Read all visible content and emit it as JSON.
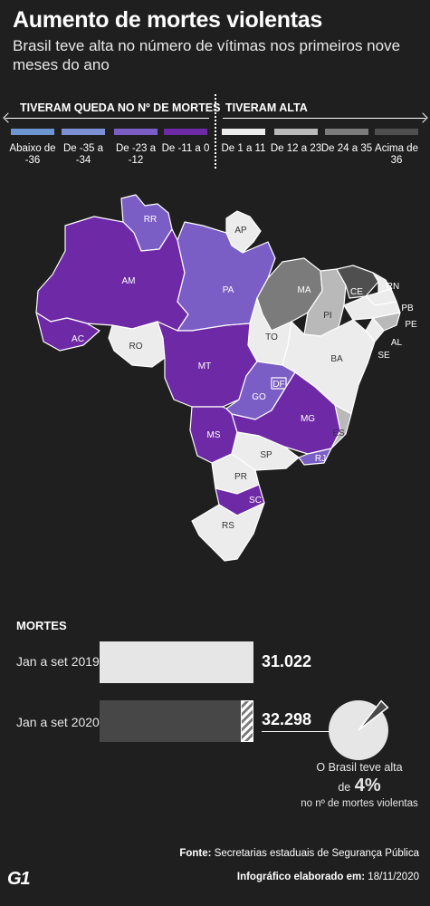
{
  "header": {
    "title": "Aumento de mortes violentas",
    "subtitle": "Brasil teve alta no número de vítimas nos primeiros nove meses do ano"
  },
  "legend": {
    "left_heading": "TIVERAM QUEDA NO Nº DE MORTES",
    "right_heading": "TIVERAM ALTA",
    "items": [
      {
        "label": "Abaixo de -36",
        "color": "#6c95d2"
      },
      {
        "label": "De -35 a -34",
        "color": "#7d90d6"
      },
      {
        "label": "De -23 a -12",
        "color": "#7b5ec5"
      },
      {
        "label": "De -11 a 0",
        "color": "#6e2aa6"
      },
      {
        "label": "De 1 a 11",
        "color": "#ececec"
      },
      {
        "label": "De 12 a 23",
        "color": "#b9b9b9"
      },
      {
        "label": "De 24 a 35",
        "color": "#7b7b7b"
      },
      {
        "label": "Acima de 36",
        "color": "#4f4f4f"
      }
    ]
  },
  "map": {
    "states": [
      {
        "abbr": "RR",
        "category": "De -23 a -12"
      },
      {
        "abbr": "AP",
        "category": "De 1 a 11"
      },
      {
        "abbr": "AM",
        "category": "De -11 a 0"
      },
      {
        "abbr": "PA",
        "category": "De -23 a -12"
      },
      {
        "abbr": "MA",
        "category": "De 24 a 35"
      },
      {
        "abbr": "CE",
        "category": "Acima de 36"
      },
      {
        "abbr": "RN",
        "category": "De 1 a 11"
      },
      {
        "abbr": "PB",
        "category": "De 1 a 11"
      },
      {
        "abbr": "PE",
        "category": "De 1 a 11"
      },
      {
        "abbr": "PI",
        "category": "De 12 a 23"
      },
      {
        "abbr": "AL",
        "category": "De 12 a 23"
      },
      {
        "abbr": "SE",
        "category": "De 1 a 11"
      },
      {
        "abbr": "AC",
        "category": "De -11 a 0"
      },
      {
        "abbr": "RO",
        "category": "De 1 a 11"
      },
      {
        "abbr": "TO",
        "category": "De 1 a 11"
      },
      {
        "abbr": "BA",
        "category": "De 1 a 11"
      },
      {
        "abbr": "MT",
        "category": "De -11 a 0"
      },
      {
        "abbr": "DF",
        "category": "De -23 a -12"
      },
      {
        "abbr": "GO",
        "category": "De -23 a -12"
      },
      {
        "abbr": "MG",
        "category": "De -11 a 0"
      },
      {
        "abbr": "ES",
        "category": "De 12 a 23"
      },
      {
        "abbr": "MS",
        "category": "De -11 a 0"
      },
      {
        "abbr": "SP",
        "category": "De 1 a 11"
      },
      {
        "abbr": "RJ",
        "category": "De -23 a -12"
      },
      {
        "abbr": "PR",
        "category": "De 1 a 11"
      },
      {
        "abbr": "SC",
        "category": "De -11 a 0"
      },
      {
        "abbr": "RS",
        "category": "De 1 a 11"
      }
    ]
  },
  "deaths": {
    "section_title": "MORTES",
    "rows": [
      {
        "label": "Jan a set 2019",
        "value_text": "31.022",
        "value": 31022,
        "color": "#e6e6e6"
      },
      {
        "label": "Jan a set 2020",
        "value_text": "32.298",
        "value": 32298,
        "color": "#474747"
      }
    ],
    "pie_increase_percent": 4,
    "note_line1": "O Brasil teve alta",
    "note_prefix": "de",
    "note_value": "4%",
    "note_line3": "no nº de mortes violentas"
  },
  "footer": {
    "source_label": "Fonte:",
    "source_text": "Secretarias estaduais de Segurança Pública",
    "credit_label": "Infográfico elaborado em:",
    "credit_date": "18/11/2020",
    "logo": "G1"
  }
}
